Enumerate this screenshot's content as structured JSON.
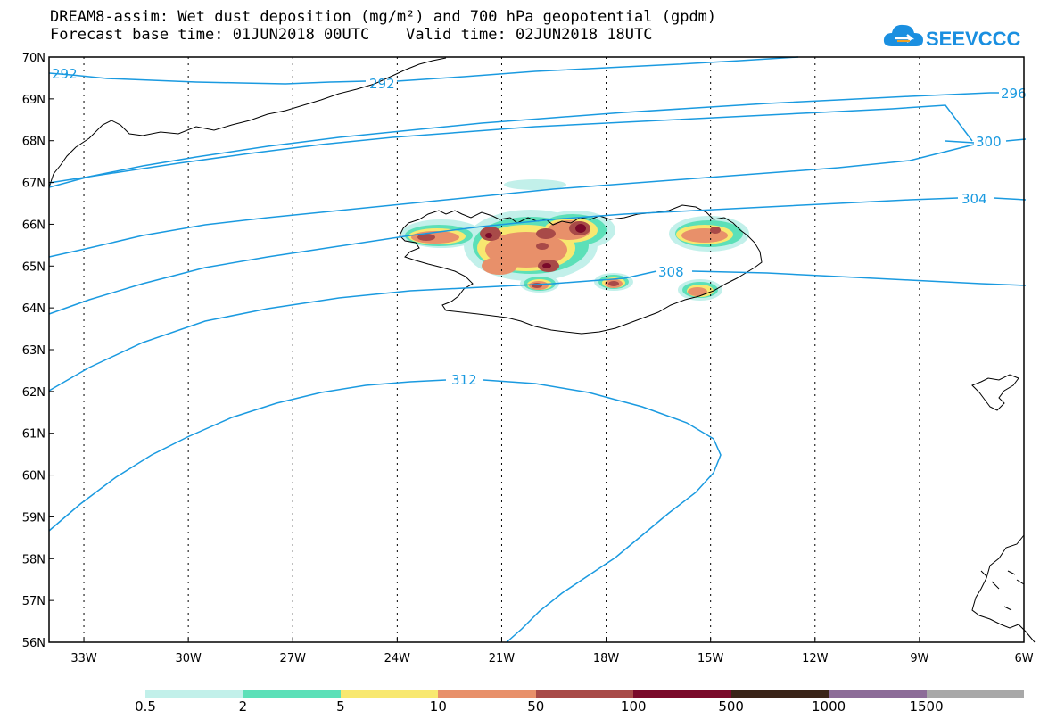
{
  "title": {
    "line1": "DREAM8-assim: Wet dust deposition (mg/m²) and 700 hPa geopotential (gpdm)",
    "line2": "Forecast base time: 01JUN2018 00UTC    Valid time: 02JUN2018 18UTC"
  },
  "logo": {
    "text": "SEEVCCC",
    "icon": "cloud-icon",
    "color": "#1a8fe0"
  },
  "map": {
    "lat_labels": [
      "70N",
      "69N",
      "68N",
      "67N",
      "66N",
      "65N",
      "64N",
      "63N",
      "62N",
      "61N",
      "60N",
      "59N",
      "58N",
      "57N",
      "56N"
    ],
    "lon_labels": [
      "33W",
      "30W",
      "27W",
      "24W",
      "21W",
      "18W",
      "15W",
      "12W",
      "9W",
      "6W"
    ],
    "contour_color": "#1a9ae0",
    "contour_labels": [
      "292",
      "292",
      "296",
      "300",
      "304",
      "308",
      "312"
    ]
  },
  "colorbar": {
    "labels": [
      "0.5",
      "2",
      "5",
      "10",
      "50",
      "100",
      "500",
      "1000",
      "1500"
    ],
    "colors": [
      "#c2f0ea",
      "#5ce0b8",
      "#f8e870",
      "#e8906a",
      "#a84a48",
      "#7a0a2a",
      "#3a2418",
      "#8c6c98",
      "#a8a8a8"
    ]
  }
}
